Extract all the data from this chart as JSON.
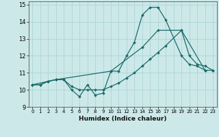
{
  "xlabel": "Humidex (Indice chaleur)",
  "xlim": [
    -0.5,
    23.5
  ],
  "ylim": [
    9,
    15.2
  ],
  "yticks": [
    9,
    10,
    11,
    12,
    13,
    14,
    15
  ],
  "xtick_labels": [
    "0",
    "1",
    "2",
    "3",
    "4",
    "5",
    "6",
    "7",
    "8",
    "9",
    "10",
    "11",
    "12",
    "13",
    "14",
    "15",
    "16",
    "17",
    "18",
    "19",
    "20",
    "21",
    "22",
    "23"
  ],
  "xtick_positions": [
    0,
    1,
    2,
    3,
    4,
    5,
    6,
    7,
    8,
    9,
    10,
    11,
    12,
    13,
    14,
    15,
    16,
    17,
    18,
    19,
    20,
    21,
    22,
    23
  ],
  "background_color": "#cde8e8",
  "grid_color": "#b0d8d8",
  "line_color": "#1a6b6b",
  "line1_x": [
    0,
    1,
    2,
    3,
    4,
    5,
    6,
    7,
    8,
    9,
    10,
    11,
    12,
    13,
    14,
    15,
    16,
    17,
    19,
    20,
    21,
    22
  ],
  "line1_y": [
    10.3,
    10.3,
    10.5,
    10.6,
    10.6,
    10.0,
    9.6,
    10.3,
    9.7,
    9.8,
    11.1,
    11.1,
    12.0,
    12.8,
    14.4,
    14.85,
    14.85,
    14.1,
    12.0,
    11.5,
    11.4,
    11.15
  ],
  "line2_x": [
    0,
    1,
    2,
    3,
    4,
    5,
    6,
    7,
    8,
    9,
    10,
    11,
    12,
    13,
    14,
    15,
    16,
    17,
    19,
    22,
    23
  ],
  "line2_y": [
    10.3,
    10.3,
    10.5,
    10.6,
    10.6,
    10.2,
    10.0,
    10.0,
    10.0,
    10.0,
    10.2,
    10.4,
    10.7,
    11.0,
    11.4,
    11.8,
    12.2,
    12.6,
    13.5,
    11.15,
    11.15
  ],
  "line3_x": [
    0,
    3,
    10,
    14,
    16,
    19,
    20,
    21,
    22,
    23
  ],
  "line3_y": [
    10.3,
    10.6,
    11.1,
    12.5,
    13.5,
    13.5,
    12.0,
    11.5,
    11.4,
    11.15
  ]
}
